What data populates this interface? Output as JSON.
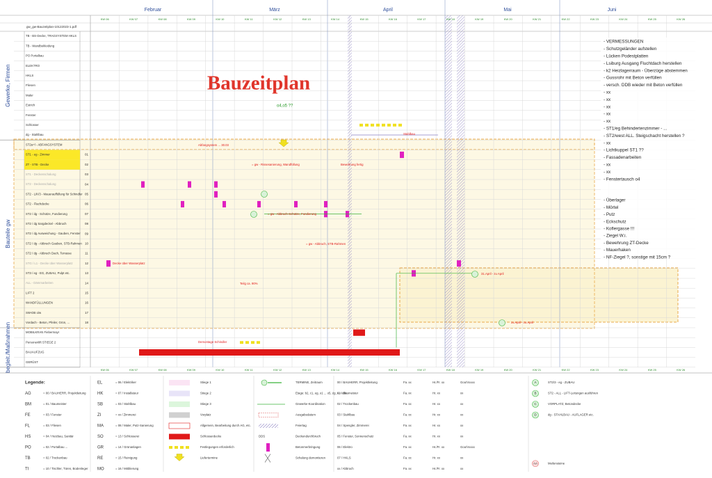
{
  "header": {
    "file": "gw_gw-Bauzeitplan-10122023-1.pdf",
    "months": [
      "Februar",
      "März",
      "April",
      "Mai",
      "Juni"
    ],
    "weeks": [
      "KW 06",
      "KW 07",
      "KW 08",
      "KW 09",
      "KW 10",
      "KW 11",
      "KW 12",
      "KW 13",
      "KW 14",
      "KW 15",
      "KW 16",
      "KW 17",
      "KW 18",
      "KW 19",
      "KW 20",
      "KW 21",
      "KW 22",
      "KW 23",
      "KW 24",
      "KW 25",
      "KW 26"
    ]
  },
  "title": "Bauzeitplan",
  "sections": [
    "Gewerke, Firmen",
    "Bauteile gw",
    "begleit./Maßnahmen"
  ],
  "rows": [
    {
      "label": "TB - BS-Decke, TRAGSYSTEM HKLS"
    },
    {
      "label": "TB - Wandbekleidung"
    },
    {
      "label": "PO Portalbau"
    },
    {
      "label": "ELEKTRO"
    },
    {
      "label": "HKLS"
    },
    {
      "label": "Fliesen"
    },
    {
      "label": "Maler"
    },
    {
      "label": "Estrich"
    },
    {
      "label": "Fenster"
    },
    {
      "label": "Schlosser"
    },
    {
      "label": "dg - Stahlbau"
    },
    {
      "label": "ST2a+l - ABFANGSYSTEM"
    },
    {
      "label": "ST1 - eg - Zimmer",
      "no": "01"
    },
    {
      "label": "ZT - STB - Decke",
      "no": "02"
    },
    {
      "label": "ST1 - Deckenschalung",
      "no": "03"
    },
    {
      "label": "ST2 - Deckenschalung",
      "no": "04"
    },
    {
      "label": "ST2 - L/K/3 - Mauerauffüllung für Schindler",
      "no": "05"
    },
    {
      "label": "ST2 - Flachdecke",
      "no": "06"
    },
    {
      "label": "ST2 / dg - Schütze, Fundierung",
      "no": "07"
    },
    {
      "label": "ST2 / dg Sargdeckel - Abbruch",
      "no": "08"
    },
    {
      "label": "ST2 / dg Ausweichung - Gauben, Fenster",
      "no": "09"
    },
    {
      "label": "ST2 / dg - Abbruch Gauben, STB-Rahmen",
      "no": "10"
    },
    {
      "label": "ST2 / dg - Abbruch Dach, Terrasse",
      "no": "11"
    },
    {
      "label": "STG / L1 - Decke über Wasserplatz",
      "no": "12"
    },
    {
      "label": "ST3 / eg - EG, ZUBAU, Pulpt etc.",
      "no": "13"
    },
    {
      "label": "ALL - Dämmarbeiten",
      "no": "14"
    },
    {
      "label": "LIFT 2",
      "no": "15"
    },
    {
      "label": "WANDFÜLLUNGEN",
      "no": "16"
    },
    {
      "label": "SW-DB o/w",
      "no": "17"
    },
    {
      "label": "Vordach - Beton, Pfeiler, Grün, ...",
      "no": "18"
    },
    {
      "label": "MOBILKRAN Fiebermayr"
    },
    {
      "label": "Personenlift STIEGE 2"
    },
    {
      "label": "BAUAUFZUG"
    },
    {
      "label": "GERÜST"
    }
  ],
  "annotations": [
    "o4,o5 ??",
    "Decke über Wasserplatz",
    "Teilg ca. 90%",
    "Demontage Schindler",
    "31.April - zu April",
    "zu April - zu April",
    "Stahlbau",
    "= gw - Abbruch, STB-Rahmen",
    "= gw - Abbruch-Schütze, Fundierung",
    "= gw - Rissesanierung, Wandfüllung",
    "Bewehrung fertig",
    "Abfangsystem ... 30.03"
  ],
  "notes": [
    "- VERMESSUNGEN",
    "- Schutzgeländer aufstellen",
    "- Lücken Podestplatten",
    "- Lsiburg Ausgang Fluchtdach herstellen",
    "- k2 Heizlagerraum - Überzüge abstemmen",
    "- Gussrohr mit Beton verfüllen",
    "- versch. DDB wieder mit Beton verfüllen",
    "- xx",
    "- xx",
    "- xx",
    "- xx",
    "- xx",
    "- ST1/eg Behindertenzimmer - ...",
    "- ST2/west ALL. Steigschacht herstellen ?",
    "- xx",
    "- Lichtkuppel  ST1  ??",
    "- Fassadenarbeiten",
    "- xx",
    "- xx",
    "- Fenstertausch o4"
  ],
  "notes2": [
    "- Überlager",
    "- Mörtel",
    "- Putz",
    "- Eckschutz",
    "- Koflergasse !!!",
    "- Ziegel W.i.",
    "- Bewehrung ZT-Decke",
    "- Mauerhaken",
    "- NF-Ziegel ?, sonstige mit 15cm ?"
  ],
  "legend": {
    "heading": "Legende:",
    "trades": [
      {
        "code": "AG",
        "name": "= 00 / BAUHERR, Projektleitung"
      },
      {
        "code": "BM",
        "name": "= 01 / Baumeister"
      },
      {
        "code": "FE",
        "name": "= 03 / Fenster"
      },
      {
        "code": "FL",
        "name": "= 03 / Fliesen"
      },
      {
        "code": "HS",
        "name": "= 04 / Heizbau, Sanitär"
      },
      {
        "code": "PO",
        "name": "= 02 / Portalbau ..."
      },
      {
        "code": "TB",
        "name": "= 02 / Trockenbau"
      },
      {
        "code": "TI",
        "name": "= 10 / Tischler, Türen, Bodenleger"
      }
    ],
    "trades2": [
      {
        "code": "EL",
        "name": "= 06 / Elektriker"
      },
      {
        "code": "HK",
        "name": "= 07 / Installateur"
      },
      {
        "code": "SB",
        "name": "= 03 / Stahlbau"
      },
      {
        "code": "ZI",
        "name": "= xx / Zimmerei"
      },
      {
        "code": "MA",
        "name": "= 08 / Maler, Putz-Sanierung"
      },
      {
        "code": "SO",
        "name": "= 13 / Schlosserei"
      },
      {
        "code": "GR",
        "name": "= 14 / Grünanlagen"
      },
      {
        "code": "RE",
        "name": "= 15 / Reinigung"
      },
      {
        "code": "MO",
        "name": "= 16 / Möblierung"
      }
    ],
    "areas": [
      "Stiege 1",
      "Stiege 2",
      "Stiege 3",
      "Vorplatz",
      "Allgemein, Bearbeitung durch AG, etc.",
      "Schlosserdecke",
      "Festlegungen erforderlich",
      "Liefertermine"
    ],
    "symbols": [
      "TERMINE, Zeitraum",
      "Etage: b2, c1, eg, o1 ... o5, dg, A = alle",
      "Gewerke-Koordination",
      "Ausgabedatum",
      "Feiertag",
      "Deckendurchbruch",
      "Betonmerbringung",
      "Schalung demontieren"
    ],
    "dds": "DDS",
    "contacts": [
      [
        "00 / BAUHERR, Projektleitung",
        "Fa. xx",
        "Hr./Fr. xx",
        "Goo/Vxxxx"
      ],
      [
        "01 / Baumeister",
        "Fa. xx",
        "Hr. xx",
        "xx"
      ],
      [
        "02 / Trockenbau",
        "Fa. xx",
        "Hr. xx",
        "xx"
      ],
      [
        "03 / Stahlbau",
        "Fa. xx",
        "Hr. xx",
        "xx"
      ],
      [
        "04 / Spengler, Zimmerei",
        "Fa. xx",
        "Hr. xx",
        "xx"
      ],
      [
        "05 / Fenster, Sonnenschutz",
        "Fa. xx",
        "Hr. xx",
        "xx"
      ],
      [
        "06 / Elektro",
        "Fa. xx",
        "Hr./Fr. xx",
        "Goo/Vxxxx"
      ],
      [
        "07 / HKLS",
        "Fa. xx",
        "Hr. xx",
        "xx"
      ],
      [
        "xx / Abbruch",
        "Fa. xx",
        "Hr./Fr. xx",
        "xx"
      ]
    ],
    "milestones": [
      {
        "key": "A",
        "text": "ST2/3 - eg - ZUBAU"
      },
      {
        "key": "B",
        "text": "ST2 - ALL - LIFT-Leitungen ausführen"
      },
      {
        "key": "C",
        "text": "VORPLATZ, Betondecke"
      },
      {
        "key": "D",
        "text": "dg - STAHLBAU - AUFLAGER etc."
      },
      {
        "key": "AA",
        "text": "Meilensteine"
      }
    ]
  }
}
